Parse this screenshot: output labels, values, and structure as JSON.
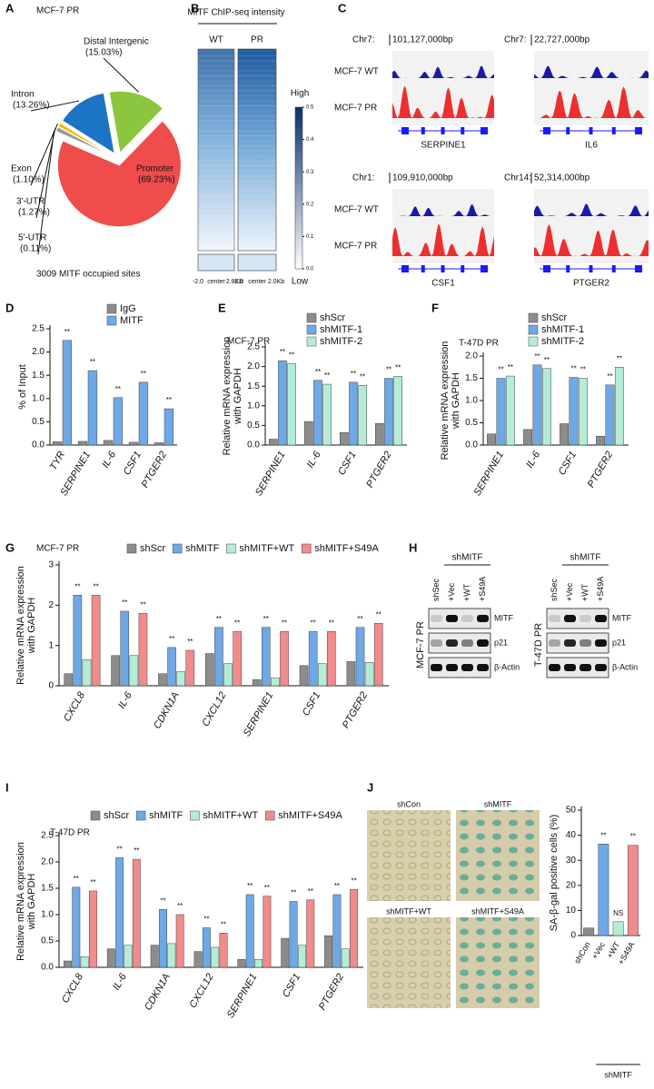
{
  "panel_labels": [
    "A",
    "B",
    "C",
    "D",
    "E",
    "F",
    "G",
    "H",
    "I",
    "J"
  ],
  "chart_data": [
    {
      "type": "pie",
      "title": "MCF-7 PR",
      "caption": "3009 MITF occupied sites",
      "categories": [
        "Distal Intergenic",
        "Promoter",
        "5'-UTR",
        "3'-UTR",
        "Exon",
        "Intron"
      ],
      "values": [
        15.03,
        69.23,
        0.11,
        1.27,
        1.1,
        13.26
      ],
      "value_labels": [
        "(15.03%)",
        "(69.23%)",
        "(0.11%)",
        "(1.27%)",
        "(1.10%)",
        "(13.26%)"
      ],
      "colors": [
        "#8cc63e",
        "#ef4c4c",
        "#555555",
        "#999999",
        "#f2b705",
        "#1b75c4"
      ]
    },
    {
      "type": "heatmap",
      "title": "MITF ChIP-seq intensity",
      "columns": [
        "WT",
        "PR"
      ],
      "x_labels": [
        "-2.0",
        "center",
        "2.0Kb"
      ],
      "high": "High",
      "low": "Low",
      "clim": [
        0,
        0.5
      ],
      "cticks": [
        {
          "value": 0,
          "label": "0.0"
        },
        0.1,
        0.2,
        0.3,
        0.4,
        0.5
      ]
    },
    {
      "type": "bar",
      "y_label": [
        "% of Input"
      ],
      "legend": "top-right",
      "categories": [
        "TYR",
        "SERPINE1",
        "IL-6",
        "CSF1",
        "PTGER2"
      ],
      "series": [
        {
          "name": "IgG",
          "color": "#8c8c8c",
          "values": [
            0.07,
            0.08,
            0.1,
            0.06,
            0.05
          ]
        },
        {
          "name": "MITF",
          "color": "#6ea8e6",
          "values": [
            2.25,
            1.6,
            1.02,
            1.35,
            0.78
          ],
          "significance": [
            "**",
            "**",
            "**",
            "**",
            "**"
          ]
        }
      ],
      "ylim": [
        0,
        2.5
      ],
      "yticks": [
        {
          "value": 0,
          "label": "0.0"
        },
        0.5,
        {
          "value": 1,
          "label": "1.0"
        },
        1.5,
        {
          "value": 2,
          "label": "2.0"
        },
        2.5
      ]
    },
    {
      "type": "bar",
      "title": "MCF-7 PR",
      "y_label": [
        "Relative mRNA expression",
        "with GAPDH"
      ],
      "legend": "top-right",
      "categories": [
        "SERPINE1",
        "IL-6",
        "CSF1",
        "PTGER2"
      ],
      "series": [
        {
          "name": "shScr",
          "color": "#8c8c8c",
          "values": [
            0.15,
            0.6,
            0.32,
            0.55
          ]
        },
        {
          "name": "shMITF-1",
          "color": "#6ea8e6",
          "values": [
            2.15,
            1.65,
            1.6,
            1.7
          ],
          "significance": [
            "**",
            "**",
            "**",
            "**"
          ]
        },
        {
          "name": "shMITF-2",
          "color": "#b5ecd6",
          "values": [
            2.08,
            1.55,
            1.52,
            1.75
          ],
          "significance": [
            "**",
            "**",
            "**",
            "**"
          ]
        }
      ],
      "ylim": [
        0,
        2.5
      ],
      "yticks": [
        {
          "value": 0,
          "label": "0.0"
        },
        0.5,
        {
          "value": 1,
          "label": "1.0"
        },
        1.5,
        {
          "value": 2,
          "label": "2.0"
        },
        2.5
      ]
    },
    {
      "type": "bar",
      "title": "T-47D PR",
      "y_label": [
        "Relative mRNA expression",
        "with GAPDH"
      ],
      "legend": "top-right",
      "categories": [
        "SERPINE1",
        "IL-6",
        "CSF1",
        "PTGER2"
      ],
      "series": [
        {
          "name": "shScr",
          "color": "#8c8c8c",
          "values": [
            0.25,
            0.35,
            0.48,
            0.2
          ]
        },
        {
          "name": "shMITF-1",
          "color": "#6ea8e6",
          "values": [
            1.5,
            1.8,
            1.52,
            1.35
          ],
          "significance": [
            "**",
            "**",
            "**",
            "**"
          ]
        },
        {
          "name": "shMITF-2",
          "color": "#b5ecd6",
          "values": [
            1.55,
            1.72,
            1.5,
            1.75
          ],
          "significance": [
            "**",
            "**",
            "**",
            "**"
          ]
        }
      ],
      "ylim": [
        0,
        2
      ],
      "yticks": [
        {
          "value": 0,
          "label": "0.0"
        },
        0.5,
        {
          "value": 1,
          "label": "1.0"
        },
        1.5,
        {
          "value": 2,
          "label": "2.0"
        }
      ]
    },
    {
      "type": "bar",
      "title": "MCF-7 PR",
      "y_label": [
        "Relative mRNA expression",
        "with GAPDH"
      ],
      "legend": "top",
      "categories": [
        "CXCL8",
        "IL-6",
        "CDKN1A",
        "CXCL12",
        "SERPINE1",
        "CSF1",
        "PTGER2"
      ],
      "series": [
        {
          "name": "shScr",
          "color": "#8c8c8c",
          "values": [
            0.3,
            0.75,
            0.3,
            0.8,
            0.15,
            0.5,
            0.6
          ]
        },
        {
          "name": "shMITF",
          "color": "#6ea8e6",
          "values": [
            2.25,
            1.85,
            0.95,
            1.45,
            1.45,
            1.35,
            1.45
          ],
          "significance": [
            "**",
            "**",
            "**",
            "**",
            "**",
            "**",
            "**"
          ]
        },
        {
          "name": "shMITF+WT",
          "color": "#b5ecd6",
          "values": [
            0.65,
            0.75,
            0.35,
            0.55,
            0.2,
            0.55,
            0.58
          ]
        },
        {
          "name": "shMITF+S49A",
          "color": "#f28b8b",
          "values": [
            2.25,
            1.8,
            0.88,
            1.35,
            1.35,
            1.35,
            1.55
          ],
          "significance": [
            "**",
            "**",
            "**",
            "**",
            "**",
            "**",
            "**"
          ]
        }
      ],
      "ylim": [
        0,
        3
      ],
      "yticks": [
        0,
        1,
        2,
        3
      ]
    },
    {
      "type": "bar",
      "title": "T-47D PR",
      "y_label": [
        "Relative mRNA expression",
        "with GAPDH"
      ],
      "legend": "top",
      "categories": [
        "CXCL8",
        "IL-6",
        "CDKN1A",
        "CXCL12",
        "SERPINE1",
        "CSF1",
        "PTGER2"
      ],
      "series": [
        {
          "name": "shScr",
          "color": "#8c8c8c",
          "values": [
            0.12,
            0.35,
            0.42,
            0.3,
            0.15,
            0.55,
            0.6
          ]
        },
        {
          "name": "shMITF",
          "color": "#6ea8e6",
          "values": [
            1.52,
            2.08,
            1.1,
            0.75,
            1.38,
            1.25,
            1.38
          ],
          "significance": [
            "**",
            "**",
            "**",
            "**",
            "**",
            "**",
            "**"
          ]
        },
        {
          "name": "shMITF+WT",
          "color": "#b5ecd6",
          "values": [
            0.2,
            0.42,
            0.45,
            0.38,
            0.15,
            0.42,
            0.35
          ]
        },
        {
          "name": "shMITF+S49A",
          "color": "#f28b8b",
          "values": [
            1.45,
            2.05,
            1.0,
            0.65,
            1.35,
            1.28,
            1.48
          ],
          "significance": [
            "**",
            "**",
            "**",
            "**",
            "**",
            "**",
            "**"
          ]
        }
      ],
      "ylim": [
        0,
        2.5
      ],
      "yticks": [
        {
          "value": 0,
          "label": "0.0"
        },
        0.5,
        {
          "value": 1,
          "label": "1.0"
        },
        1.5,
        {
          "value": 2,
          "label": "2.0"
        },
        2.5
      ]
    },
    {
      "type": "bar",
      "y_label": [
        "SA-β-gal positive cells (%)"
      ],
      "group_label": "shMITF",
      "categories": [
        "shCon",
        "+Vec",
        "+WT",
        "+S49A"
      ],
      "values": [
        3,
        36.5,
        5.5,
        36
      ],
      "colors": [
        "#8c8c8c",
        "#6ea8e6",
        "#b5ecd6",
        "#f28b8b"
      ],
      "significance": [
        null,
        "**",
        "NS",
        "**"
      ],
      "ylim": [
        0,
        50
      ],
      "yticks": [
        0,
        10,
        20,
        30,
        40,
        50
      ]
    }
  ],
  "tracks": {
    "rows": [
      "MCF-7 WT",
      "MCF-7 PR"
    ],
    "loci": [
      {
        "chrom": "Chr7:",
        "position": "101,127,000bp",
        "gene": "SERPINE1"
      },
      {
        "chrom": "Chr7:",
        "position": "22,727,000bp",
        "gene": "IL6"
      },
      {
        "chrom": "Chr1:",
        "position": "109,910,000bp",
        "gene": "CSF1"
      },
      {
        "chrom": "Chr14:",
        "position": "52,314,000bp",
        "gene": "PTGER2"
      }
    ]
  },
  "blots": {
    "group": "shMITF",
    "lanes": [
      "shSec",
      "+Vec",
      "+WT",
      "+S49A"
    ],
    "cells": [
      "MCF-7 PR",
      "T-47D PR"
    ],
    "proteins": [
      "MITF",
      "p21",
      "β-Actin"
    ]
  },
  "images": [
    "shCon",
    "shMITF",
    "shMITF+WT",
    "shMITF+S49A"
  ]
}
